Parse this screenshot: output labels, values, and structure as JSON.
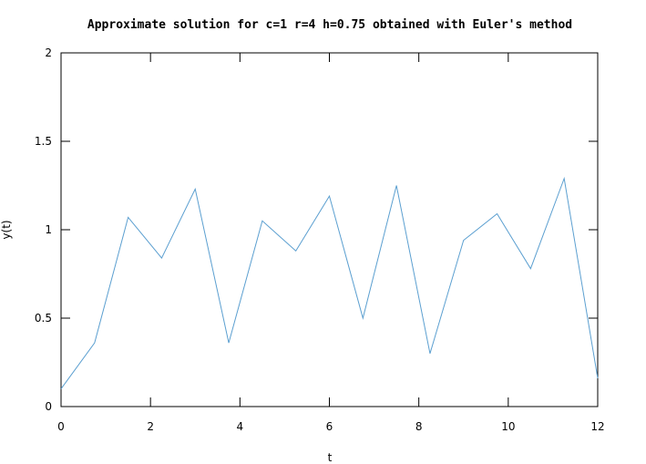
{
  "chart_data": {
    "type": "line",
    "title": "Approximate solution for c=1 r=4 h=0.75 obtained with Euler's method",
    "xlabel": "t",
    "ylabel": "y(t)",
    "xlim": [
      0,
      12
    ],
    "ylim": [
      0,
      2
    ],
    "x_ticks": [
      "0",
      "2",
      "4",
      "6",
      "8",
      "10",
      "12"
    ],
    "y_ticks": [
      "0",
      "0.5",
      "1",
      "1.5",
      "2"
    ],
    "grid": false,
    "legend": "none",
    "series": [
      {
        "color": "#5b9fd0",
        "x": [
          0,
          0.75,
          1.5,
          2.25,
          3,
          3.75,
          4.5,
          5.25,
          6,
          6.75,
          7.5,
          8.25,
          9,
          9.75,
          10.5,
          11.25,
          12
        ],
        "y": [
          0.1,
          0.36,
          1.07,
          0.84,
          1.23,
          0.36,
          1.05,
          0.88,
          1.19,
          0.5,
          1.25,
          0.3,
          0.94,
          1.09,
          0.78,
          1.29,
          0.16
        ]
      }
    ]
  }
}
